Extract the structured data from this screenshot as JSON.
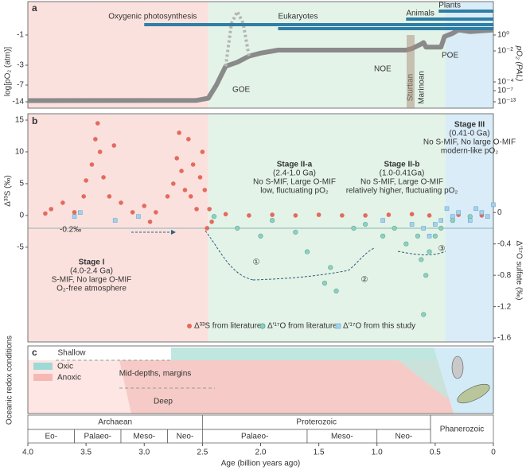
{
  "shading": [
    {
      "from": 4.0,
      "to": 2.45,
      "color": "#fbe1de"
    },
    {
      "from": 2.45,
      "to": 0.41,
      "color": "#e3f3e8"
    },
    {
      "from": 0.41,
      "to": 0,
      "color": "#d9ecf7"
    }
  ],
  "chart_data": [
    {
      "type": "line",
      "label": "a",
      "ylabel": "log[pO₂ (atm)]",
      "y2label": "pO₂ (PAL)",
      "xlim": [
        4.0,
        0
      ],
      "ylim": [
        -15,
        1
      ],
      "yticks": [
        -14,
        -7,
        -3,
        -1
      ],
      "y2lim": [
        -15,
        1
      ],
      "y2ticks": [
        {
          "value": -13,
          "label": "10⁻¹³"
        },
        {
          "value": -7,
          "label": "10⁻⁷"
        },
        {
          "value": -4,
          "label": "10⁻⁴"
        },
        {
          "value": -2,
          "label": "10⁻²"
        },
        {
          "value": 0,
          "label": "10⁰"
        }
      ],
      "series": [
        {
          "color": "#8a8a8a",
          "x": [
            4.0,
            2.55,
            2.45,
            2.38,
            2.3,
            2.2,
            2.1,
            2.0,
            1.85,
            1.2,
            0.75,
            0.7,
            0.62,
            0.6,
            0.58,
            0.45,
            0.42,
            0.35,
            0.3,
            0.2,
            0
          ],
          "values": [
            -13.5,
            -13.4,
            -12.5,
            -7,
            -3.2,
            -2.8,
            -2.4,
            -2.2,
            -2,
            -2,
            -2,
            -1.9,
            -1.6,
            -1.5,
            -1.8,
            -1.8,
            -1.1,
            -0.9,
            -0.7,
            -0.8,
            -0.7
          ]
        },
        {
          "color": "#b5b5b5",
          "dash": true,
          "x": [
            2.3,
            2.25,
            2.2,
            2.15,
            2.1
          ],
          "values": [
            -3.2,
            -0.3,
            0.4,
            -0.3,
            -2.4
          ]
        }
      ],
      "ranges": [
        {
          "name": "Oxygenic photosynthesis",
          "from": 3.0,
          "color": "#2f7ea6"
        },
        {
          "name": "Eukaryotes",
          "from": 1.85,
          "color": "#2f7ea6"
        },
        {
          "name": "Animals",
          "from": 0.75,
          "color": "#2f7ea6"
        },
        {
          "name": "Plants",
          "from": 0.47,
          "color": "#2f7ea6"
        }
      ],
      "annotations": [
        "GOE",
        "NOE",
        "POE",
        "Sturtian",
        "Marinoan"
      ]
    },
    {
      "type": "scatter",
      "label": "b",
      "ylabel": "Δ³³S (‰)",
      "y2label": "Δ′¹⁷O sulfate (‰)",
      "xlim": [
        4.0,
        0
      ],
      "ylim": [
        -19.9,
        16
      ],
      "yticks": [
        15,
        10,
        5,
        0,
        -5
      ],
      "y2lim": [
        -1.65,
        1.26
      ],
      "y2ticks": [
        0,
        -0.4,
        -0.8,
        -1.2,
        -1.6
      ],
      "series": [
        {
          "name": "Δ³³S from literature",
          "color": "#e36b5d",
          "marker": "circle",
          "x": [
            3.85,
            3.8,
            3.7,
            3.6,
            3.52,
            3.5,
            3.45,
            3.42,
            3.4,
            3.38,
            3.35,
            3.3,
            3.26,
            3.2,
            3.1,
            3.0,
            2.95,
            2.9,
            2.8,
            2.75,
            2.72,
            2.7,
            2.68,
            2.65,
            2.62,
            2.6,
            2.58,
            2.55,
            2.52,
            2.5,
            2.48,
            2.46,
            2.44,
            2.42,
            2.3,
            2.1,
            1.9,
            1.7,
            1.5,
            1.3,
            1.1,
            0.9,
            0.7,
            0.55,
            0.3,
            0.1
          ],
          "values": [
            0.3,
            1,
            2,
            0.5,
            3,
            5.5,
            8,
            12,
            14.5,
            10,
            6,
            3,
            11,
            2,
            0.5,
            1.5,
            -1,
            0.5,
            3,
            5,
            9,
            13,
            7,
            4,
            12,
            3,
            8,
            1,
            6,
            10,
            4,
            -2,
            1,
            -1,
            0.2,
            0,
            0.1,
            0,
            0.1,
            0,
            0,
            0.1,
            0.2,
            0,
            0.1,
            0
          ]
        },
        {
          "name": "Δ′¹⁷O from literature",
          "color": "#8fd0bf",
          "marker": "circle",
          "axis": "y2",
          "x": [
            2.4,
            2.2,
            2.0,
            1.9,
            1.7,
            1.6,
            1.45,
            1.4,
            1.35,
            1.2,
            1.1,
            0.95,
            0.85,
            0.75,
            0.65,
            0.62,
            0.6,
            0.58,
            0.55,
            0.5,
            0.45,
            0.35,
            0.2
          ],
          "values": [
            -0.05,
            -0.2,
            -0.3,
            -0.1,
            -0.25,
            -0.5,
            -0.9,
            -0.7,
            -1.0,
            -0.2,
            -0.15,
            -0.3,
            -0.2,
            -0.4,
            -0.3,
            -0.6,
            -1.3,
            -0.8,
            -0.5,
            -0.3,
            -0.2,
            -0.1,
            -0.05
          ]
        },
        {
          "name": "Δ′¹⁷O from this study",
          "color": "#a3d2ea",
          "marker": "square",
          "axis": "y2",
          "x": [
            3.6,
            3.55,
            3.25,
            3.05,
            0.95,
            0.7,
            0.6,
            0.55,
            0.5,
            0.45,
            0.4,
            0.35,
            0.3,
            0.2,
            0.15,
            0.1,
            0.05,
            0
          ],
          "values": [
            -0.05,
            0,
            -0.1,
            -0.05,
            -0.1,
            -0.15,
            -0.2,
            -0.3,
            -0.15,
            -0.1,
            0.05,
            -0.05,
            0,
            -0.1,
            0.05,
            0,
            -0.05,
            0.1
          ]
        }
      ],
      "reference": {
        "value": -0.2,
        "label": "-0.2‰"
      },
      "stages": [
        {
          "name": "Stage I",
          "range": "(4.0-2.4 Ga)",
          "lines": [
            "S-MIF, No large O-MIF",
            "O₂-free atmosphere"
          ]
        },
        {
          "name": "Stage II-a",
          "range": "(2.4-1.0 Ga)",
          "lines": [
            "No S-MIF, Large O-MIF",
            "low, fluctuating pO₂"
          ]
        },
        {
          "name": "Stage II-b",
          "range": "(1.0-0.41Ga)",
          "lines": [
            "No S-MIF, Large O-MIF",
            "relatively higher, fluctuating pO₂"
          ]
        },
        {
          "name": "Stage III",
          "range": "(0.41-0 Ga)",
          "lines": [
            "No S-MIF, No large O-MIF",
            "modern-like pO₂"
          ]
        }
      ],
      "steps": [
        "①",
        "②",
        "③"
      ]
    },
    {
      "type": "timescale",
      "label": "c",
      "ylabel": "Oceanic redox conditions",
      "xlim": [
        4.0,
        0
      ],
      "xlabel": "Age (billion years ago)",
      "xticks": [
        {
          "value": 4,
          "label": "4.0"
        },
        3.5,
        {
          "value": 3,
          "label": "3.0"
        },
        2.5,
        {
          "value": 2,
          "label": "2.0"
        },
        1.5,
        {
          "value": 1,
          "label": "1.0"
        },
        0.5,
        0
      ],
      "zones": [
        "Shallow",
        "Mid-depths, margins",
        "Deep"
      ],
      "legend": [
        {
          "name": "Oxic",
          "color": "#9fd9d5"
        },
        {
          "name": "Anoxic",
          "color": "#f4b9b4"
        }
      ],
      "eons": [
        {
          "name": "Archaean",
          "from": 4.0,
          "to": 2.5
        },
        {
          "name": "Proterozoic",
          "from": 2.5,
          "to": 0.54
        },
        {
          "name": "Phanerozoic",
          "from": 0.54,
          "to": 0
        }
      ],
      "eras": [
        {
          "name": "Eo-",
          "from": 4.0,
          "to": 3.6
        },
        {
          "name": "Palaeo-",
          "from": 3.6,
          "to": 3.2
        },
        {
          "name": "Meso-",
          "from": 3.2,
          "to": 2.8
        },
        {
          "name": "Neo-",
          "from": 2.8,
          "to": 2.5
        },
        {
          "name": "Palaeo-",
          "from": 2.5,
          "to": 1.6
        },
        {
          "name": "Meso-",
          "from": 1.6,
          "to": 1.0
        },
        {
          "name": "Neo-",
          "from": 1.0,
          "to": 0.54
        }
      ]
    }
  ]
}
